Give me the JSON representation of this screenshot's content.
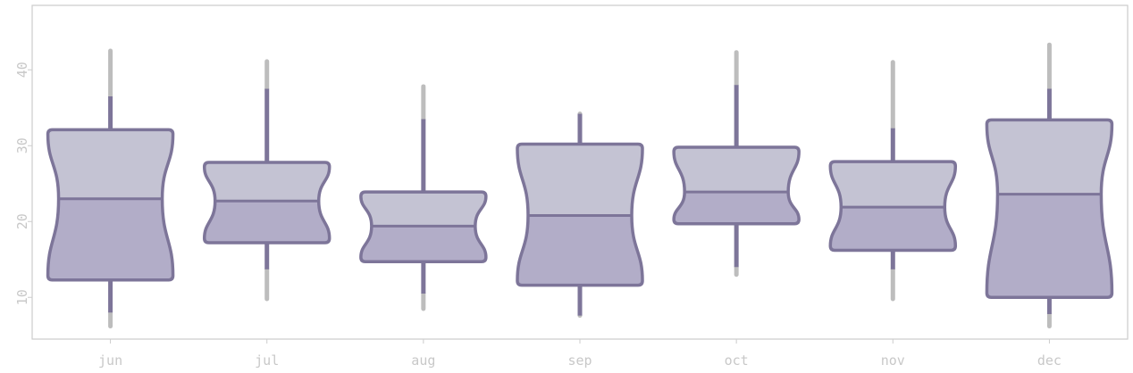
{
  "chart_data": {
    "type": "box",
    "title": "",
    "xlabel": "",
    "ylabel": "",
    "categories": [
      "jun",
      "jul",
      "aug",
      "sep",
      "oct",
      "nov",
      "dec"
    ],
    "ylim": [
      4.5,
      48.5
    ],
    "yticks": [
      10,
      20,
      30,
      40
    ],
    "grid": false,
    "boxes": [
      {
        "category": "jun",
        "whisker_low": 6.2,
        "q1": 12.3,
        "median": 23.0,
        "q3": 32.1,
        "whisker_high": 42.5,
        "inner_low": 8.0,
        "inner_high": 36.5
      },
      {
        "category": "jul",
        "whisker_low": 9.8,
        "q1": 17.2,
        "median": 22.7,
        "q3": 27.8,
        "whisker_high": 41.1,
        "inner_low": 13.7,
        "inner_high": 37.5
      },
      {
        "category": "aug",
        "whisker_low": 8.5,
        "q1": 14.7,
        "median": 19.4,
        "q3": 23.9,
        "whisker_high": 37.8,
        "inner_low": 10.5,
        "inner_high": 33.5
      },
      {
        "category": "sep",
        "whisker_low": 7.6,
        "q1": 11.6,
        "median": 20.8,
        "q3": 30.2,
        "whisker_high": 34.2,
        "inner_low": 7.6,
        "inner_high": 34.2
      },
      {
        "category": "oct",
        "whisker_low": 13.0,
        "q1": 19.7,
        "median": 23.9,
        "q3": 29.8,
        "whisker_high": 42.3,
        "inner_low": 14.0,
        "inner_high": 38.0
      },
      {
        "category": "nov",
        "whisker_low": 9.8,
        "q1": 16.2,
        "median": 21.9,
        "q3": 27.9,
        "whisker_high": 41.0,
        "inner_low": 13.7,
        "inner_high": 32.3
      },
      {
        "category": "dec",
        "whisker_low": 6.2,
        "q1": 10.0,
        "median": 23.6,
        "q3": 33.4,
        "whisker_high": 43.3,
        "inner_low": 7.8,
        "inner_high": 37.5
      }
    ],
    "colors": {
      "upper_fill": "#c4c3d3",
      "lower_fill": "#b2adc8",
      "outline": "#7d7599",
      "outer_whisker": "#bdbdbd",
      "axis": "#cccccc",
      "tick_text": "#c8c8c8"
    }
  }
}
